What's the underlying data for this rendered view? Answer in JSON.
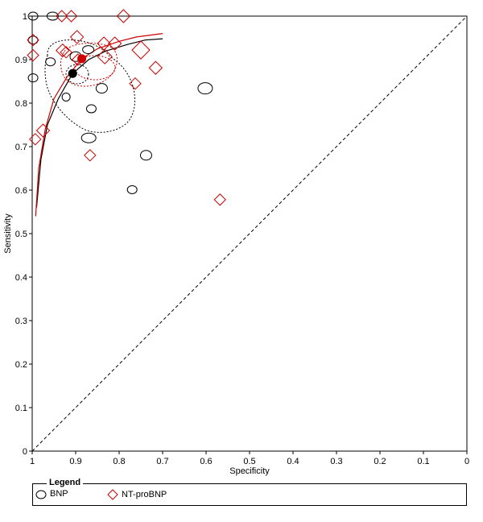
{
  "chart_data": {
    "type": "scatter",
    "title": "",
    "xlabel": "Specificity",
    "ylabel": "Sensitivity",
    "xlim": [
      1,
      0
    ],
    "ylim": [
      0,
      1
    ],
    "x_ticks": [
      "1",
      "0.9",
      "0.8",
      "0.7",
      "0.6",
      "0.5",
      "0.4",
      "0.3",
      "0.2",
      "0.1",
      "0"
    ],
    "y_ticks": [
      "0",
      "0.1",
      "0.2",
      "0.3",
      "0.4",
      "0.5",
      "0.6",
      "0.7",
      "0.8",
      "0.9",
      "1"
    ],
    "diagonal": true,
    "legend_title": "Legend",
    "legend_position": "bottom",
    "series": [
      {
        "name": "BNP",
        "marker": "circle",
        "color": "#000000",
        "points": [
          {
            "x": 0.998,
            "y": 1.0,
            "rx": 6,
            "ry": 5
          },
          {
            "x": 0.953,
            "y": 1.0,
            "rx": 7,
            "ry": 5
          },
          {
            "x": 0.998,
            "y": 0.945,
            "rx": 6,
            "ry": 5
          },
          {
            "x": 0.998,
            "y": 0.858,
            "rx": 6,
            "ry": 5
          },
          {
            "x": 0.958,
            "y": 0.895,
            "rx": 6,
            "ry": 5
          },
          {
            "x": 0.871,
            "y": 0.923,
            "rx": 7,
            "ry": 5
          },
          {
            "x": 0.9,
            "y": 0.907,
            "rx": 7,
            "ry": 6
          },
          {
            "x": 0.922,
            "y": 0.814,
            "rx": 5,
            "ry": 5
          },
          {
            "x": 0.864,
            "y": 0.787,
            "rx": 6,
            "ry": 5
          },
          {
            "x": 0.84,
            "y": 0.834,
            "rx": 7,
            "ry": 6
          },
          {
            "x": 0.87,
            "y": 0.72,
            "rx": 9,
            "ry": 6
          },
          {
            "x": 0.738,
            "y": 0.68,
            "rx": 7,
            "ry": 6
          },
          {
            "x": 0.77,
            "y": 0.601,
            "rx": 6,
            "ry": 5
          },
          {
            "x": 0.602,
            "y": 0.834,
            "rx": 9,
            "ry": 7
          }
        ],
        "summary": {
          "x": 0.907,
          "y": 0.868
        },
        "sroc": [
          [
            0.99,
            0.56
          ],
          [
            0.98,
            0.67
          ],
          [
            0.965,
            0.75
          ],
          [
            0.94,
            0.81
          ],
          [
            0.907,
            0.868
          ],
          [
            0.87,
            0.9
          ],
          [
            0.83,
            0.92
          ],
          [
            0.78,
            0.935
          ],
          [
            0.74,
            0.945
          ],
          [
            0.7,
            0.948
          ]
        ]
      },
      {
        "name": "NT-proBNP",
        "marker": "diamond",
        "color": "#cc0000",
        "points": [
          {
            "x": 0.932,
            "y": 1.0,
            "s": 7
          },
          {
            "x": 0.91,
            "y": 1.0,
            "s": 7
          },
          {
            "x": 0.79,
            "y": 1.0,
            "s": 8
          },
          {
            "x": 0.998,
            "y": 0.945,
            "s": 7
          },
          {
            "x": 0.998,
            "y": 0.91,
            "s": 7
          },
          {
            "x": 0.897,
            "y": 0.952,
            "s": 8
          },
          {
            "x": 0.93,
            "y": 0.921,
            "s": 8
          },
          {
            "x": 0.922,
            "y": 0.917,
            "s": 7
          },
          {
            "x": 0.895,
            "y": 0.9,
            "s": 7
          },
          {
            "x": 0.835,
            "y": 0.937,
            "s": 8
          },
          {
            "x": 0.81,
            "y": 0.937,
            "s": 8
          },
          {
            "x": 0.833,
            "y": 0.907,
            "s": 9
          },
          {
            "x": 0.75,
            "y": 0.922,
            "s": 11
          },
          {
            "x": 0.716,
            "y": 0.881,
            "s": 8
          },
          {
            "x": 0.763,
            "y": 0.845,
            "s": 7
          },
          {
            "x": 0.975,
            "y": 0.737,
            "s": 8
          },
          {
            "x": 0.993,
            "y": 0.717,
            "s": 7
          },
          {
            "x": 0.867,
            "y": 0.68,
            "s": 7
          },
          {
            "x": 0.568,
            "y": 0.578,
            "s": 7
          }
        ],
        "summary": {
          "x": 0.886,
          "y": 0.902
        },
        "sroc": [
          [
            0.992,
            0.54
          ],
          [
            0.985,
            0.65
          ],
          [
            0.97,
            0.74
          ],
          [
            0.95,
            0.81
          ],
          [
            0.92,
            0.86
          ],
          [
            0.886,
            0.902
          ],
          [
            0.85,
            0.925
          ],
          [
            0.8,
            0.942
          ],
          [
            0.76,
            0.952
          ],
          [
            0.7,
            0.96
          ]
        ]
      }
    ]
  }
}
